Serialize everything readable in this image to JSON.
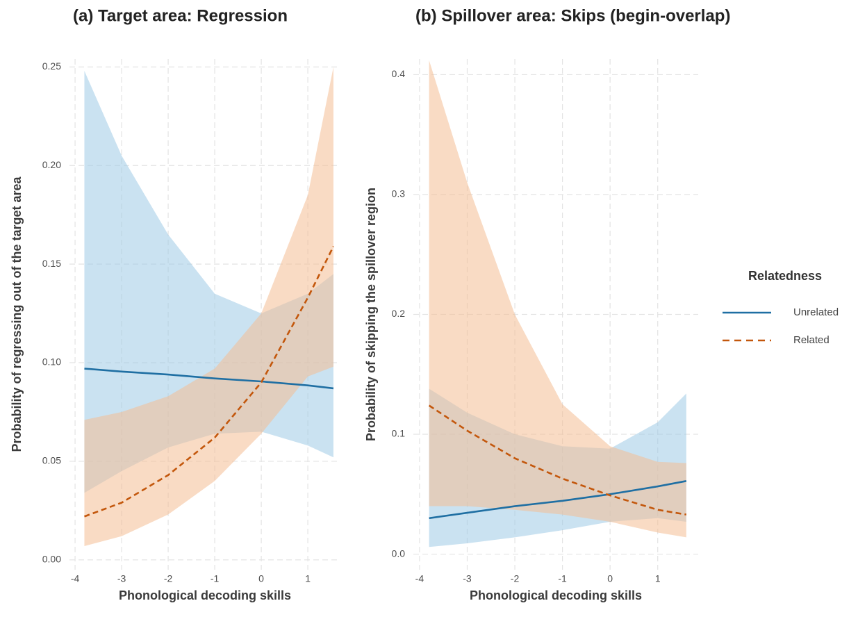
{
  "chart_data": [
    {
      "type": "line",
      "title": "(a) Target area: Regression",
      "x_label": "Phonological decoding skills",
      "y_label": "Probability of regressing out of the target area",
      "x": [
        -3.8,
        -3,
        -2,
        -1,
        0,
        1,
        1.55
      ],
      "xlim": [
        -4.12,
        1.7
      ],
      "xticks": [
        -4,
        -3,
        -2,
        -1,
        0,
        1
      ],
      "ylim": [
        -0.005,
        0.254
      ],
      "yticks": [
        {
          "value": 0,
          "label": "0.00"
        },
        0.05,
        {
          "value": 0.1,
          "label": "0.10"
        },
        0.15,
        {
          "value": 0.2,
          "label": "0.20"
        },
        0.25
      ],
      "grid": true,
      "series": [
        {
          "color": "#1f6fa3",
          "band_color": "#9ecae6",
          "dash": false,
          "values": [
            0.097,
            0.0955,
            0.094,
            0.092,
            0.0905,
            0.0885,
            0.087
          ],
          "upper": [
            0.248,
            0.205,
            0.165,
            0.135,
            0.125,
            0.135,
            0.145
          ],
          "lower": [
            0.034,
            0.045,
            0.057,
            0.064,
            0.065,
            0.058,
            0.052
          ]
        },
        {
          "color": "#c3570c",
          "band_color": "#f4bd93",
          "dash": true,
          "values": [
            0.022,
            0.029,
            0.043,
            0.062,
            0.09,
            0.133,
            0.159
          ],
          "upper": [
            0.071,
            0.075,
            0.083,
            0.097,
            0.125,
            0.185,
            0.25
          ],
          "lower": [
            0.007,
            0.012,
            0.023,
            0.04,
            0.064,
            0.093,
            0.098
          ]
        }
      ]
    },
    {
      "type": "line",
      "title": "(b) Spillover area: Skips (begin-overlap)",
      "x_label": "Phonological decoding skills",
      "y_label": "Probability of skipping the spillover region",
      "x": [
        -3.8,
        -3,
        -2,
        -1,
        0,
        1,
        1.6
      ],
      "xlim": [
        -4.13,
        1.85
      ],
      "xticks": [
        -4,
        -3,
        -2,
        -1,
        0,
        1
      ],
      "ylim": [
        -0.013,
        0.413
      ],
      "yticks": [
        {
          "value": 0,
          "label": "0.0"
        },
        0.1,
        0.2,
        0.3,
        0.4
      ],
      "grid": true,
      "legend_title": "Relatedness",
      "series": [
        {
          "name": "Unrelated",
          "color": "#1f6fa3",
          "band_color": "#9ecae6",
          "dash": false,
          "values": [
            0.03,
            0.0345,
            0.04,
            0.0445,
            0.05,
            0.0565,
            0.061
          ],
          "upper": [
            0.138,
            0.118,
            0.1,
            0.09,
            0.088,
            0.11,
            0.134
          ],
          "lower": [
            0.006,
            0.009,
            0.014,
            0.02,
            0.027,
            0.03,
            0.027
          ]
        },
        {
          "name": "Related",
          "color": "#c3570c",
          "band_color": "#f4bd93",
          "dash": true,
          "values": [
            0.124,
            0.103,
            0.08,
            0.063,
            0.049,
            0.037,
            0.033
          ],
          "upper": [
            0.412,
            0.31,
            0.2,
            0.125,
            0.09,
            0.077,
            0.076
          ],
          "lower": [
            0.04,
            0.04,
            0.037,
            0.033,
            0.027,
            0.018,
            0.014
          ]
        }
      ]
    }
  ]
}
